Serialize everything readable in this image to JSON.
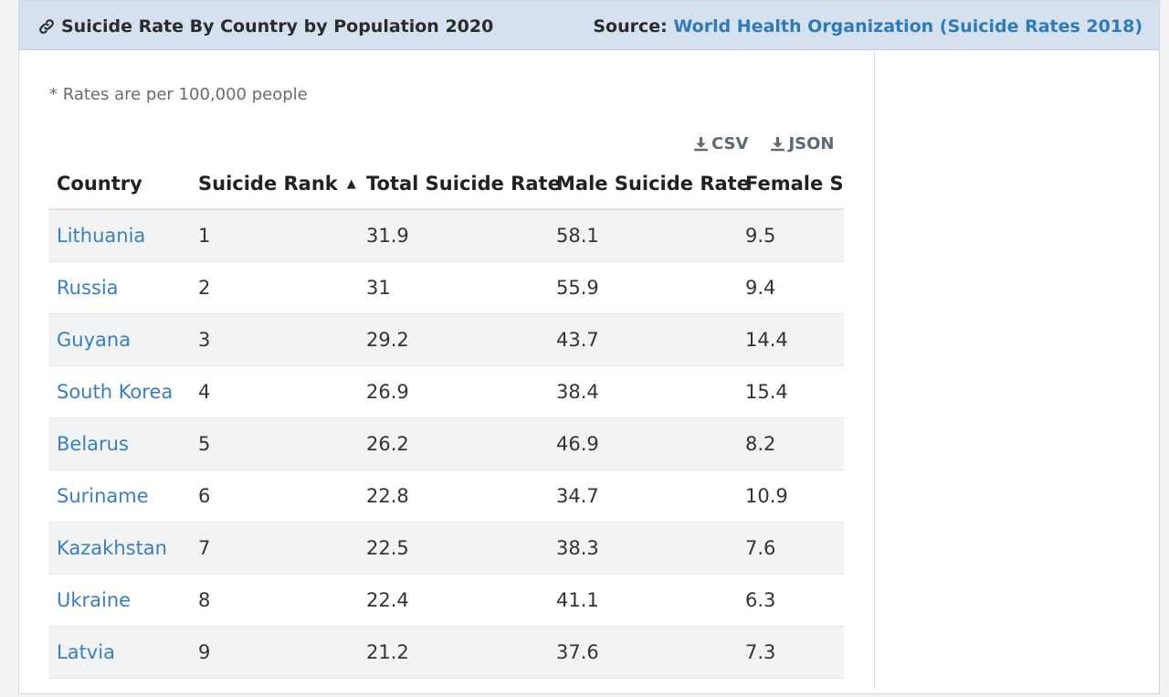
{
  "header": {
    "title": "Suicide Rate By Country by Population 2020",
    "source_label": "Source:",
    "source_link": "World Health Organization (Suicide Rates 2018)"
  },
  "note": "* Rates are per 100,000 people",
  "downloads": {
    "csv": "CSV",
    "json": "JSON"
  },
  "table": {
    "columns": [
      "Country",
      "Suicide Rank",
      "Total Suicide Rate",
      "Male Suicide Rate",
      "Female Su"
    ],
    "sorted_column": "Suicide Rank",
    "sort_direction": "ascending",
    "rows": [
      {
        "country": "Lithuania",
        "rank": "1",
        "total": "31.9",
        "male": "58.1",
        "female": "9.5"
      },
      {
        "country": "Russia",
        "rank": "2",
        "total": "31",
        "male": "55.9",
        "female": "9.4"
      },
      {
        "country": "Guyana",
        "rank": "3",
        "total": "29.2",
        "male": "43.7",
        "female": "14.4"
      },
      {
        "country": "South Korea",
        "rank": "4",
        "total": "26.9",
        "male": "38.4",
        "female": "15.4"
      },
      {
        "country": "Belarus",
        "rank": "5",
        "total": "26.2",
        "male": "46.9",
        "female": "8.2"
      },
      {
        "country": "Suriname",
        "rank": "6",
        "total": "22.8",
        "male": "34.7",
        "female": "10.9"
      },
      {
        "country": "Kazakhstan",
        "rank": "7",
        "total": "22.5",
        "male": "38.3",
        "female": "7.6"
      },
      {
        "country": "Ukraine",
        "rank": "8",
        "total": "22.4",
        "male": "41.1",
        "female": "6.3"
      },
      {
        "country": "Latvia",
        "rank": "9",
        "total": "21.2",
        "male": "37.6",
        "female": "7.3"
      }
    ]
  },
  "icons": {
    "header": "link-icon",
    "download": "download-icon",
    "sort": "sort-up-icon"
  },
  "colors": {
    "link": "#3a7fba",
    "header_bg": "#d5e1ee",
    "row_alt": "#f2f3f5"
  }
}
